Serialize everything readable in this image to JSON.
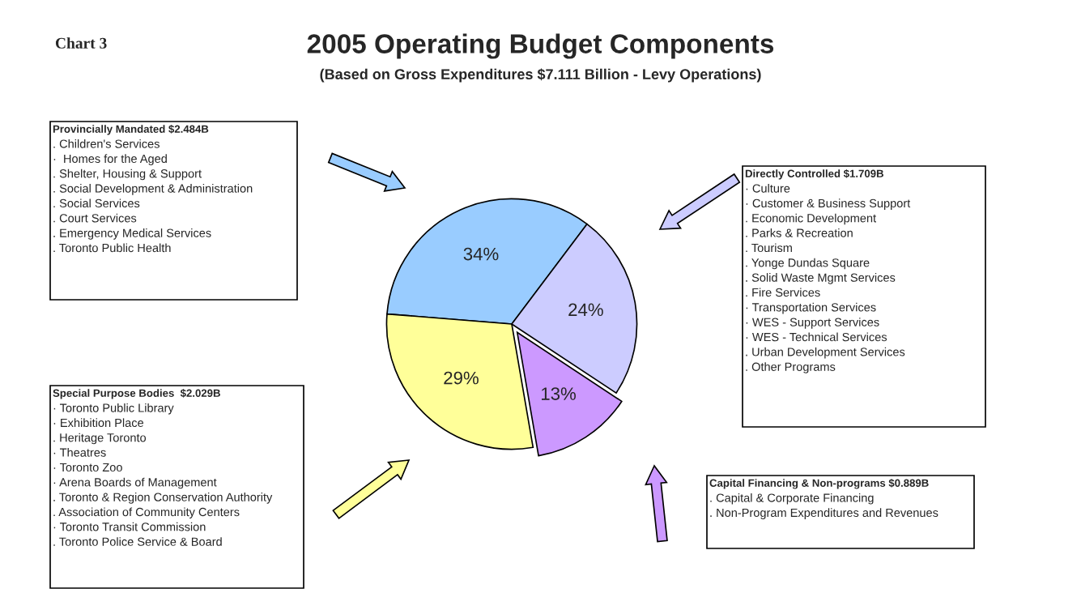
{
  "chart_data": {
    "type": "pie",
    "title": "2005 Operating Budget Components",
    "subtitle": "(Based on Gross Expenditures $7.111 Billion - Levy Operations)",
    "categories": [
      null,
      null,
      null,
      null
    ],
    "values": [
      34,
      29,
      13,
      24
    ],
    "value_labels": [
      "34%",
      "29%",
      "13%",
      "24%"
    ],
    "colors": [
      "#99ccff",
      "#ffff99",
      "#cc99ff",
      "#ccccff"
    ],
    "annotations": [
      "Chart 3",
      "Provincially Mandated $2.484B",
      ". Children's Services\n·  Homes for the Aged\n. Shelter, Housing & Support\n. Social Development & Administration\n. Social Services\n. Court Services\n. Emergency Medical Services\n. Toronto Public Health",
      "Special Purpose Bodies  $2.029B",
      "· Toronto Public Library\n· Exhibition Place\n. Heritage Toronto\n· Theatres\n· Toronto Zoo\n· Arena Boards of Management\n. Toronto & Region Conservation Authority\n. Association of Community Centers\n· Toronto Transit Commission\n. Toronto Police Service & Board",
      "Capital Financing & Non-programs $0.889B",
      ". Capital & Corporate Financing\n. Non-Program Expenditures and Revenues",
      "Directly Controlled $1.709B",
      "· Culture\n· Customer & Business Support\n. Economic Development\n. Parks & Recreation\n. Tourism\n. Yonge Dundas Square\n. Solid Waste Mgmt Services\n. Fire Services\n· Transportation Services\n· WES - Support Services\n· WES - Technical Services\n. Urban Development Services\n. Other Programs"
    ]
  }
}
